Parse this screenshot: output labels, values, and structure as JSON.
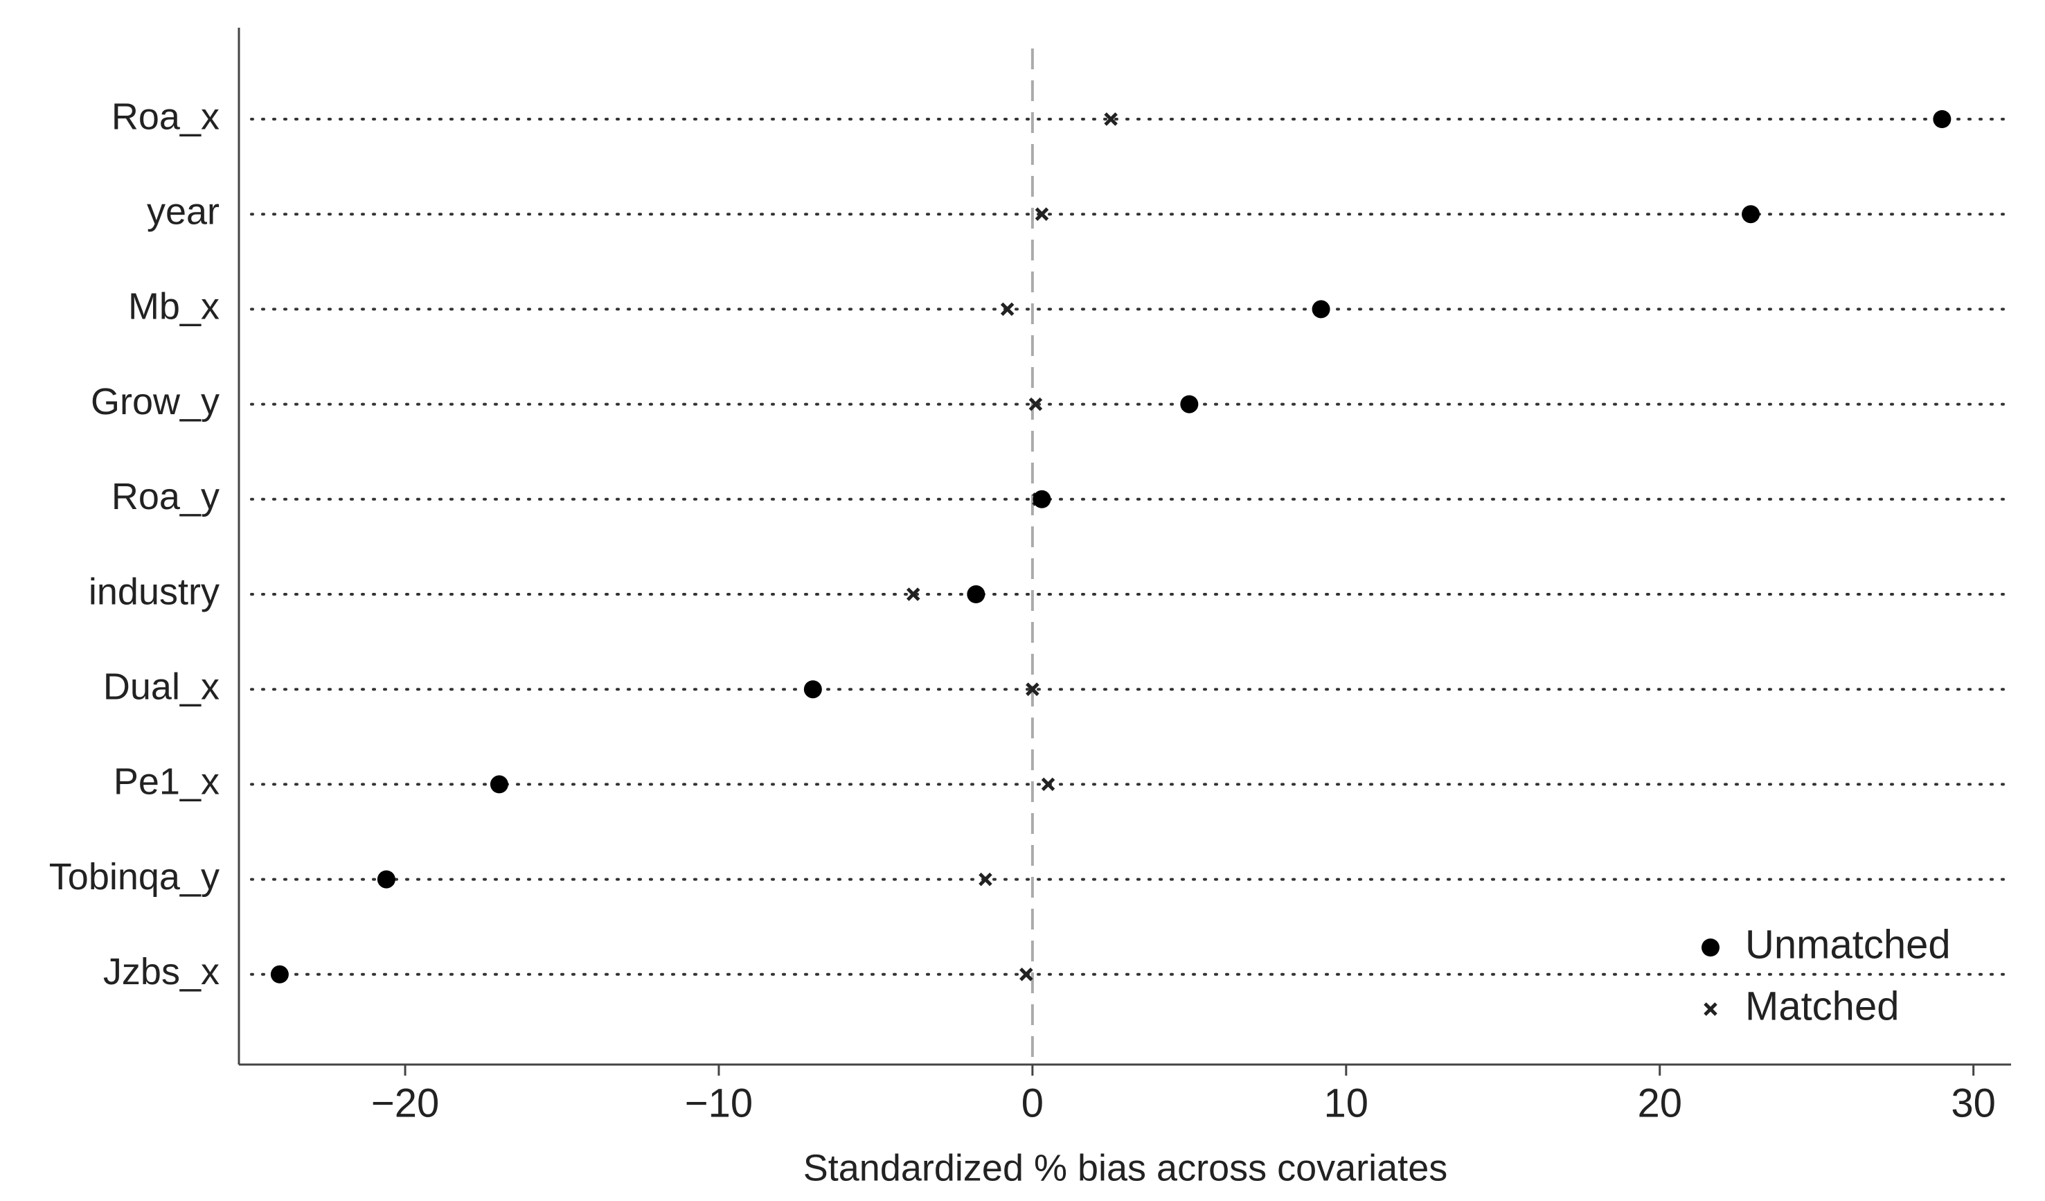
{
  "chart_data": {
    "type": "dot",
    "x_label": "Standardized % bias across covariates",
    "categories": [
      "Roa_x",
      "year",
      "Mb_x",
      "Grow_y",
      "Roa_y",
      "industry",
      "Dual_x",
      "Pe1_x",
      "Tobinqa_y",
      "Jzbs_x"
    ],
    "series": [
      {
        "name": "Unmatched",
        "color": "#000000",
        "marker": "circle",
        "values": [
          29.0,
          22.9,
          9.2,
          5.0,
          0.3,
          -1.8,
          -7.0,
          -17.0,
          -20.6,
          -24.0
        ]
      },
      {
        "name": "Matched",
        "color": "#222222",
        "marker": "x",
        "values": [
          2.5,
          0.3,
          -0.8,
          0.1,
          0.2,
          -3.8,
          0.0,
          0.5,
          -1.5,
          -0.2
        ]
      }
    ],
    "xlim": [
      -25.3,
      31.2
    ],
    "xticks": [
      {
        "value": -20,
        "label": "−20"
      },
      {
        "value": -10,
        "label": "−10"
      },
      0,
      10,
      20,
      30
    ],
    "reference_line": {
      "x": 0,
      "style": "dashed"
    },
    "grid": "dotted",
    "legend": "lower right"
  }
}
